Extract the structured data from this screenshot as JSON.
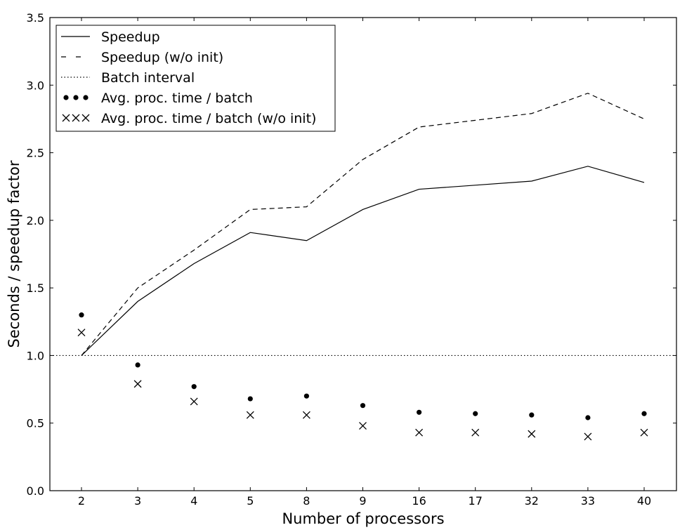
{
  "chart_data": {
    "type": "line",
    "title": "",
    "xlabel": "Number of processors",
    "ylabel": "Seconds / speedup factor",
    "categories": [
      "2",
      "3",
      "4",
      "5",
      "8",
      "9",
      "16",
      "17",
      "32",
      "33",
      "40"
    ],
    "ylim": [
      0,
      3.5
    ],
    "yticks": [
      "0.0",
      "0.5",
      "1.0",
      "1.5",
      "2.0",
      "2.5",
      "3.0",
      "3.5"
    ],
    "grid": false,
    "legend_position": "top-left",
    "series": [
      {
        "name": "Speedup",
        "style": "solid",
        "values": [
          1.0,
          1.4,
          1.68,
          1.91,
          1.85,
          2.08,
          2.23,
          2.26,
          2.29,
          2.4,
          2.28
        ]
      },
      {
        "name": "Speedup (w/o init)",
        "style": "dashed",
        "values": [
          1.0,
          1.5,
          1.78,
          2.08,
          2.1,
          2.45,
          2.69,
          2.74,
          2.79,
          2.94,
          2.75
        ]
      },
      {
        "name": "Batch interval",
        "style": "dotted",
        "values": [
          1.0,
          1.0,
          1.0,
          1.0,
          1.0,
          1.0,
          1.0,
          1.0,
          1.0,
          1.0,
          1.0
        ]
      },
      {
        "name": "Avg. proc. time / batch",
        "style": "dots",
        "values": [
          1.3,
          0.93,
          0.77,
          0.68,
          0.7,
          0.63,
          0.58,
          0.57,
          0.56,
          0.54,
          0.57
        ]
      },
      {
        "name": "Avg. proc. time / batch (w/o init)",
        "style": "crosses",
        "values": [
          1.17,
          0.79,
          0.66,
          0.56,
          0.56,
          0.48,
          0.43,
          0.43,
          0.42,
          0.4,
          0.43
        ]
      }
    ],
    "colors": {
      "line": "#000000",
      "background": "#ffffff"
    }
  }
}
